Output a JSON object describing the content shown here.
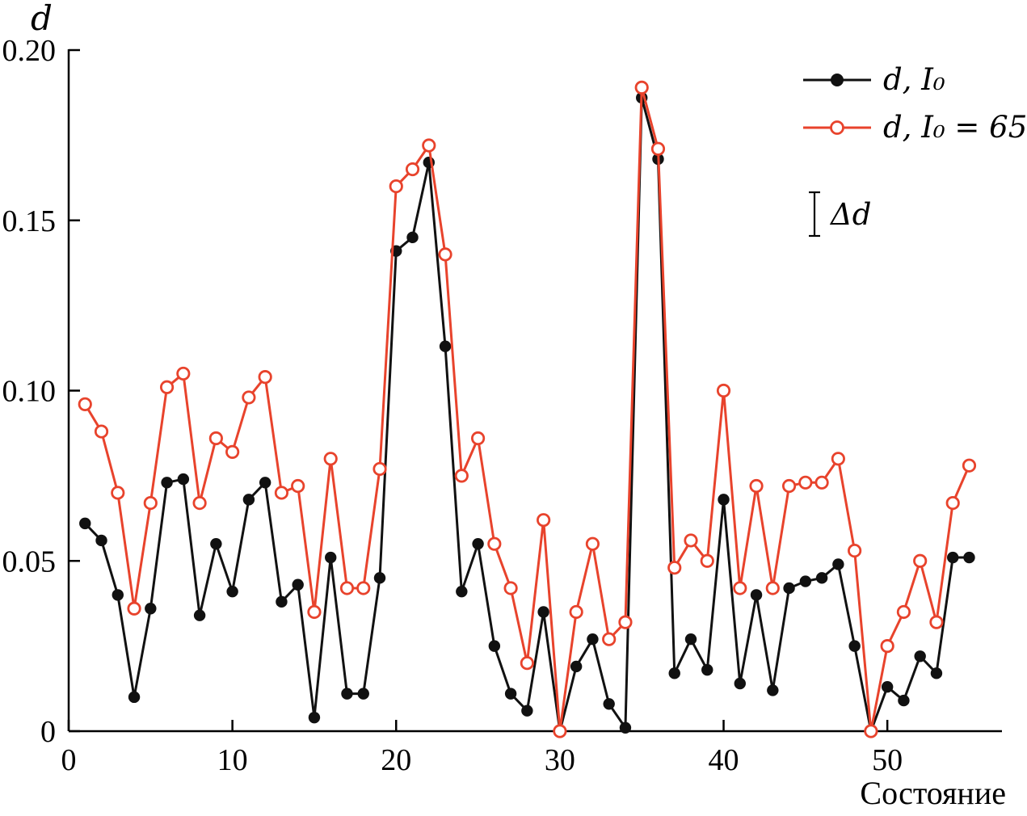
{
  "chart_data": {
    "type": "line",
    "title": "",
    "ylabel": "d",
    "xlabel": "Состояние",
    "xlim": [
      0,
      57
    ],
    "ylim": [
      0,
      0.2
    ],
    "xticks": [
      0,
      10,
      20,
      30,
      40,
      50
    ],
    "xtick_labels": [
      "0",
      "10",
      "20",
      "30",
      "40",
      "50"
    ],
    "yticks": [
      0,
      0.05,
      0.1,
      0.15,
      0.2
    ],
    "ytick_labels": [
      "0",
      "0.05",
      "0.10",
      "0.15",
      "0.20"
    ],
    "grid": false,
    "legend_position": "top-right",
    "x": [
      1,
      2,
      3,
      4,
      5,
      6,
      7,
      8,
      9,
      10,
      11,
      12,
      13,
      14,
      15,
      16,
      17,
      18,
      19,
      20,
      21,
      22,
      23,
      24,
      25,
      26,
      27,
      28,
      29,
      30,
      31,
      32,
      33,
      34,
      35,
      36,
      37,
      38,
      39,
      40,
      41,
      42,
      43,
      44,
      45,
      46,
      47,
      48,
      49,
      50,
      51,
      52,
      53,
      54,
      55
    ],
    "series": [
      {
        "name": "d, I₀",
        "color": "#111111",
        "marker": "filled-circle",
        "values": [
          0.061,
          0.056,
          0.04,
          0.01,
          0.036,
          0.073,
          0.074,
          0.034,
          0.055,
          0.041,
          0.068,
          0.073,
          0.038,
          0.043,
          0.004,
          0.051,
          0.011,
          0.011,
          0.045,
          0.141,
          0.145,
          0.167,
          0.113,
          0.041,
          0.055,
          0.025,
          0.011,
          0.006,
          0.035,
          0.0,
          0.019,
          0.027,
          0.008,
          0.001,
          0.186,
          0.168,
          0.017,
          0.027,
          0.018,
          0.068,
          0.014,
          0.04,
          0.012,
          0.042,
          0.044,
          0.045,
          0.049,
          0.025,
          0.0,
          0.013,
          0.009,
          0.022,
          0.017,
          0.051,
          0.051
        ]
      },
      {
        "name": "d, I₀ = 65",
        "color": "#e8432c",
        "marker": "open-circle",
        "values": [
          0.096,
          0.088,
          0.07,
          0.036,
          0.067,
          0.101,
          0.105,
          0.067,
          0.086,
          0.082,
          0.098,
          0.104,
          0.07,
          0.072,
          0.035,
          0.08,
          0.042,
          0.042,
          0.077,
          0.16,
          0.165,
          0.172,
          0.14,
          0.075,
          0.086,
          0.055,
          0.042,
          0.02,
          0.062,
          0.0,
          0.035,
          0.055,
          0.027,
          0.032,
          0.189,
          0.171,
          0.048,
          0.056,
          0.05,
          0.1,
          0.042,
          0.072,
          0.042,
          0.072,
          0.073,
          0.073,
          0.08,
          0.053,
          0.0,
          0.025,
          0.035,
          0.05,
          0.032,
          0.067,
          0.078
        ]
      }
    ],
    "annotations": [
      {
        "text": "Δd",
        "type": "error-bar-scale"
      }
    ]
  }
}
